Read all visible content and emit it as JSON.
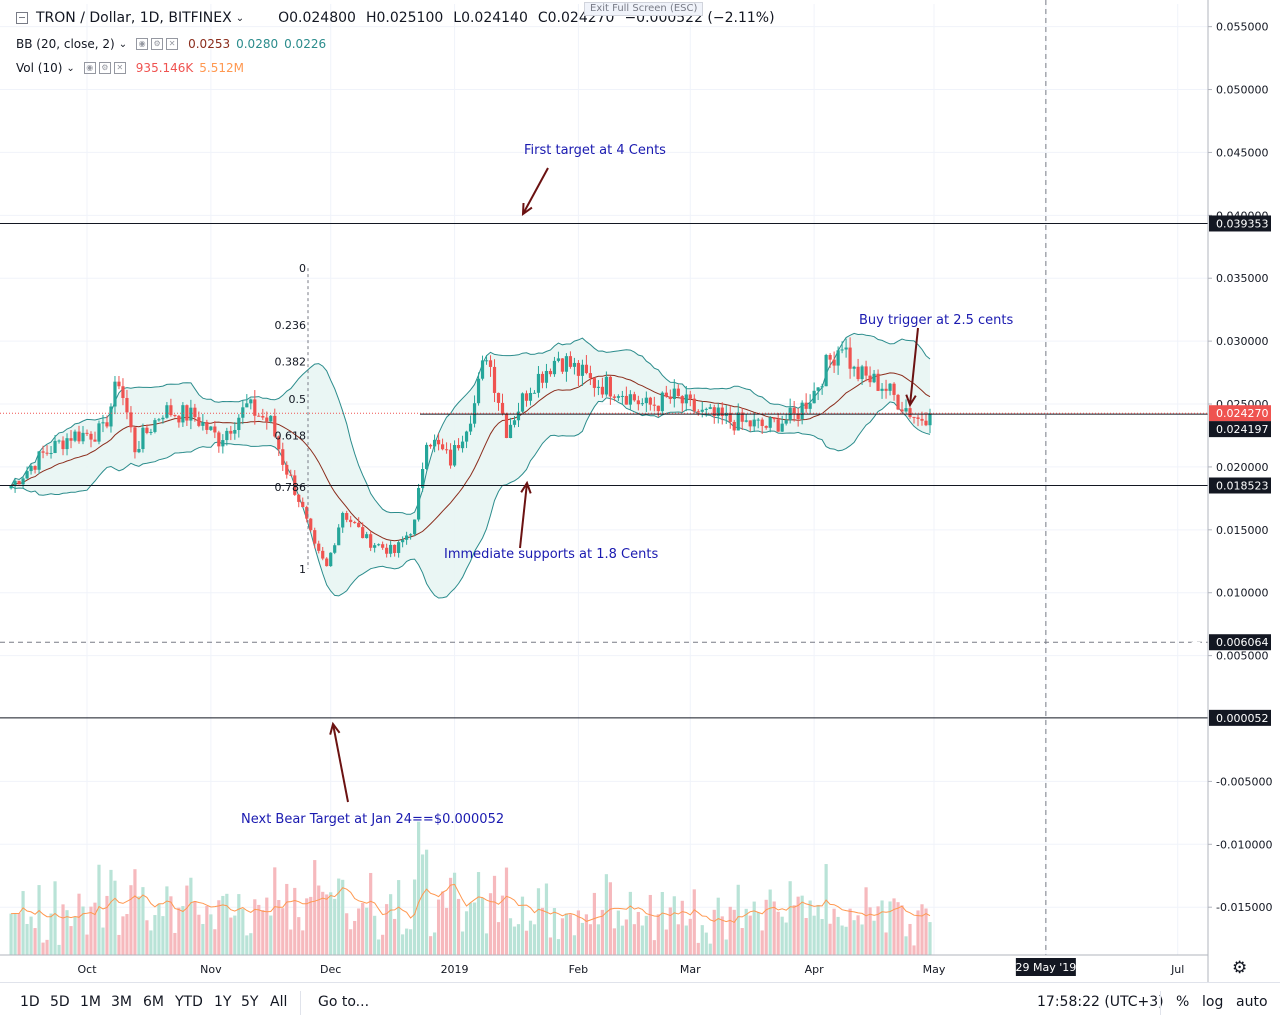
{
  "header": {
    "symbol": "TRON / Dollar, 1D, BITFINEX",
    "open": "O0.024800",
    "high": "H0.025100",
    "low": "L0.024140",
    "close": "C0.024270",
    "change": "−0.000522 (−2.11%)",
    "bb_label": "BB (20, close, 2)",
    "bb_basis": "0.0253",
    "bb_upper": "0.0280",
    "bb_lower": "0.0226",
    "vol_label": "Vol (10)",
    "vol_value": "935.146K",
    "vol_ma": "5.512M",
    "exit_fullscreen": "Exit Full Screen (ESC)"
  },
  "colors": {
    "up": "#26a69a",
    "down": "#ef5350",
    "bb_basis": "#8b2d1c",
    "bb_band": "#2b8c8c",
    "bb_fill": "#e8f5f3",
    "vol_up": "#b9e3d7",
    "vol_down": "#f6b9bd",
    "vol_ma": "#ff9850",
    "annotation": "#1a1ab0",
    "arrow": "#6b1212"
  },
  "chart_data": {
    "type": "candlestick",
    "series": [
      {
        "name": "TRON / Dollar, 1D, BITFINEX"
      },
      {
        "name": "BB (20, close, 2)"
      },
      {
        "name": "Vol (10)"
      }
    ],
    "x_ticks": [
      "Oct",
      "Nov",
      "Dec",
      "2019",
      "Feb",
      "Mar",
      "Apr",
      "May",
      "29 May '19",
      "Jul"
    ],
    "y_ticks": [
      "0.055000",
      "0.050000",
      "0.045000",
      "0.040000",
      "0.035000",
      "0.030000",
      "0.025000",
      "0.020000",
      "0.015000",
      "0.010000",
      "0.005000",
      "-0.005000",
      "-0.010000",
      "-0.015000"
    ],
    "y_range": [
      -0.0188,
      0.0568
    ],
    "price_markers": [
      {
        "label": "0.039353",
        "value": 0.039353,
        "style": "dark"
      },
      {
        "label": "0.024270",
        "value": 0.02427,
        "style": "red"
      },
      {
        "label": "0.024197",
        "value": 0.024197,
        "style": "dark"
      },
      {
        "label": "0.018523",
        "value": 0.018523,
        "style": "dark"
      },
      {
        "label": "0.006064",
        "value": 0.006064,
        "style": "dark"
      },
      {
        "label": "0.000052",
        "value": 5.2e-05,
        "style": "dark"
      }
    ],
    "horizontal_lines": [
      0.039353,
      0.024197,
      0.018523,
      5.2e-05
    ],
    "fib_levels": [
      {
        "label": "0",
        "value": 0.0358
      },
      {
        "label": "0.236",
        "value": 0.0313
      },
      {
        "label": "0.382",
        "value": 0.0284
      },
      {
        "label": "0.5",
        "value": 0.0254
      },
      {
        "label": "0.618",
        "value": 0.0225
      },
      {
        "label": "0.786",
        "value": 0.0184
      },
      {
        "label": "1",
        "value": 0.0119
      }
    ],
    "annotations": [
      {
        "text": "First target at 4 Cents"
      },
      {
        "text": "Buy trigger at 2.5 cents"
      },
      {
        "text": "Immediate supports at 1.8 Cents"
      },
      {
        "text": "Next Bear Target at Jan 24==$0.000052"
      }
    ],
    "candles_keyframes": [
      {
        "date": "Sep 12",
        "close": 0.0185
      },
      {
        "date": "Sep 20",
        "close": 0.021
      },
      {
        "date": "Sep 27",
        "close": 0.0225
      },
      {
        "date": "Oct 5",
        "close": 0.0228
      },
      {
        "date": "Oct 9",
        "close": 0.027
      },
      {
        "date": "Oct 13",
        "close": 0.0215
      },
      {
        "date": "Oct 20",
        "close": 0.0245
      },
      {
        "date": "Oct 28",
        "close": 0.024
      },
      {
        "date": "Nov 3",
        "close": 0.0222
      },
      {
        "date": "Nov 10",
        "close": 0.0248
      },
      {
        "date": "Nov 16",
        "close": 0.0235
      },
      {
        "date": "Nov 19",
        "close": 0.0205
      },
      {
        "date": "Nov 23",
        "close": 0.0175
      },
      {
        "date": "Nov 27",
        "close": 0.0135
      },
      {
        "date": "Nov 30",
        "close": 0.012
      },
      {
        "date": "Dec 4",
        "close": 0.0165
      },
      {
        "date": "Dec 10",
        "close": 0.0142
      },
      {
        "date": "Dec 17",
        "close": 0.0132
      },
      {
        "date": "Dec 22",
        "close": 0.0155
      },
      {
        "date": "Dec 25",
        "close": 0.0225
      },
      {
        "date": "Dec 31",
        "close": 0.0205
      },
      {
        "date": "Jan 6",
        "close": 0.025
      },
      {
        "date": "Jan 9",
        "close": 0.0292
      },
      {
        "date": "Jan 14",
        "close": 0.023
      },
      {
        "date": "Jan 20",
        "close": 0.0265
      },
      {
        "date": "Jan 27",
        "close": 0.0288
      },
      {
        "date": "Feb 4",
        "close": 0.0268
      },
      {
        "date": "Feb 11",
        "close": 0.0262
      },
      {
        "date": "Feb 18",
        "close": 0.0248
      },
      {
        "date": "Feb 25",
        "close": 0.0255
      },
      {
        "date": "Mar 4",
        "close": 0.0242
      },
      {
        "date": "Mar 12",
        "close": 0.0236
      },
      {
        "date": "Mar 20",
        "close": 0.0232
      },
      {
        "date": "Mar 27",
        "close": 0.024
      },
      {
        "date": "Apr 1",
        "close": 0.026
      },
      {
        "date": "Apr 4",
        "close": 0.028
      },
      {
        "date": "Apr 8",
        "close": 0.03
      },
      {
        "date": "Apr 11",
        "close": 0.0275
      },
      {
        "date": "Apr 18",
        "close": 0.0265
      },
      {
        "date": "Apr 23",
        "close": 0.025
      },
      {
        "date": "Apr 27",
        "close": 0.0238
      },
      {
        "date": "Apr 30",
        "close": 0.02427
      }
    ]
  },
  "toolbar": {
    "timeframes": [
      "1D",
      "5D",
      "1M",
      "3M",
      "6M",
      "YTD",
      "1Y",
      "5Y",
      "All"
    ],
    "goto": "Go to...",
    "clock": "17:58:22 (UTC+3)",
    "percent": "%",
    "log": "log",
    "auto": "auto"
  }
}
